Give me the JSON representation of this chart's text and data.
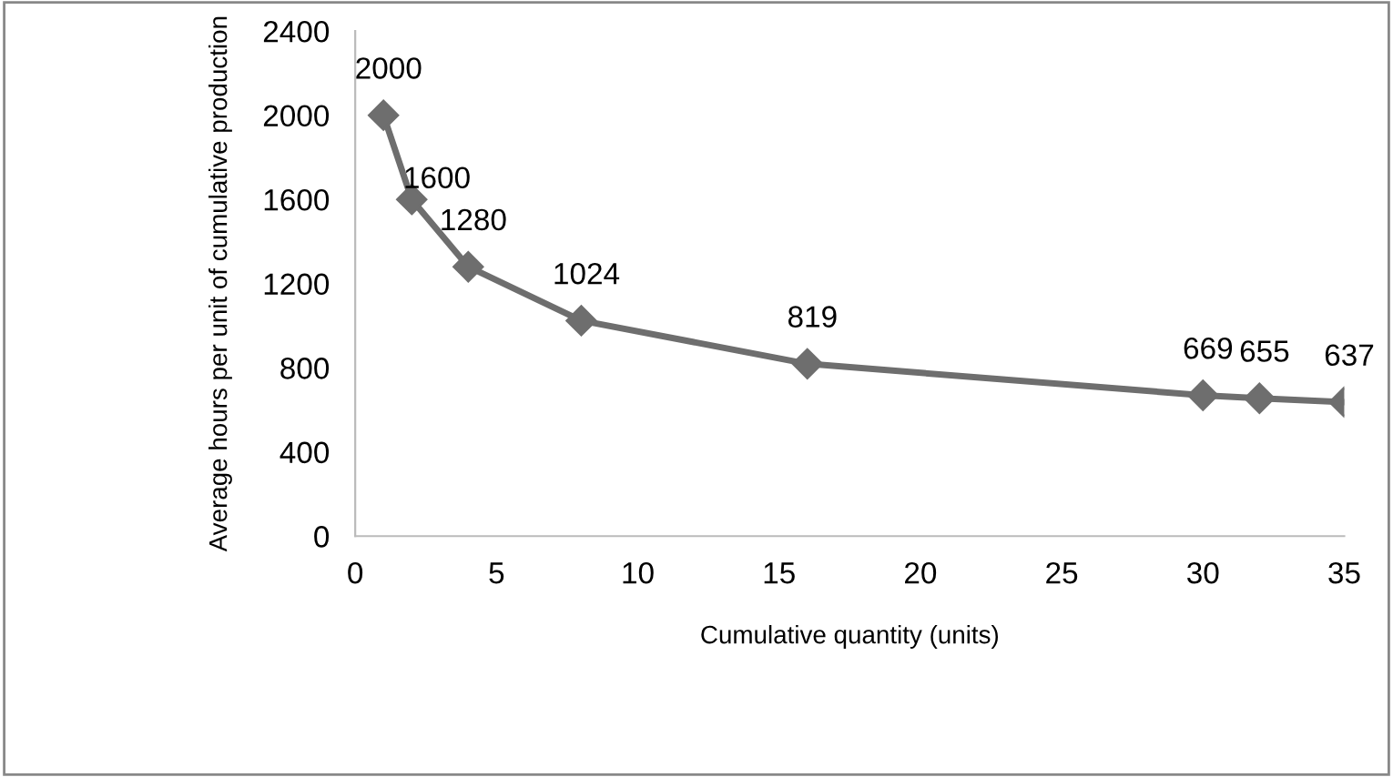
{
  "chart_data": {
    "type": "line",
    "xlabel": "Cumulative quantity (units)",
    "ylabel": "Average hours per unit of cumulative production",
    "x": [
      1,
      2,
      4,
      8,
      16,
      30,
      32,
      35
    ],
    "series": [
      {
        "color": "#6e6e6e",
        "values": [
          2000,
          1600,
          1280,
          1024,
          819,
          669,
          655,
          637
        ]
      }
    ],
    "xlim": [
      0,
      35
    ],
    "xticks": [
      0,
      5,
      10,
      15,
      20,
      25,
      30,
      35
    ],
    "ylim": [
      0,
      2400
    ],
    "yticks": [
      0,
      400,
      800,
      1200,
      1600,
      2000,
      2400
    ],
    "data_labels": true,
    "marker": "diamond",
    "line_style": "solid",
    "grid": false,
    "legend": false
  }
}
